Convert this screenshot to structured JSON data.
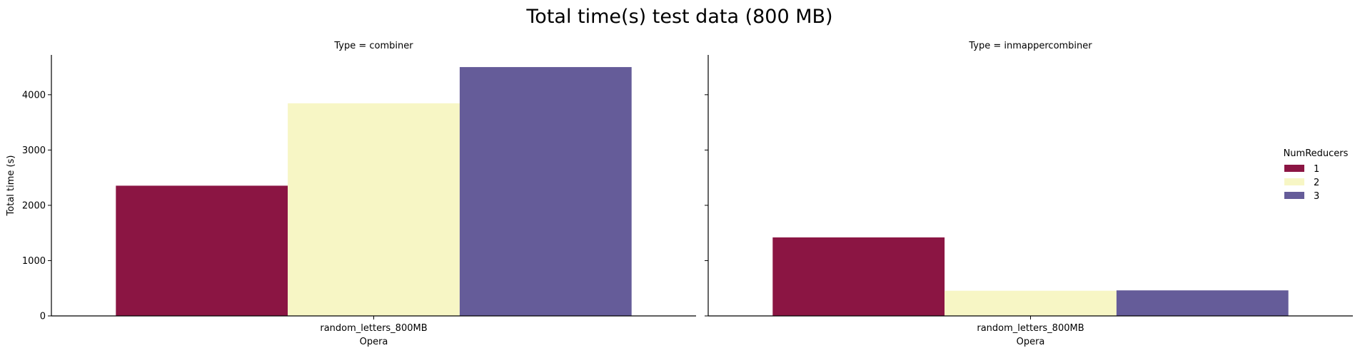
{
  "title": "Total time(s) test data (800 MB)",
  "legend": {
    "title": "NumReducers",
    "placement": "right",
    "entries": [
      {
        "label": "1",
        "color": "#8b1543"
      },
      {
        "label": "2",
        "color": "#f7f6c5"
      },
      {
        "label": "3",
        "color": "#655c99"
      }
    ]
  },
  "chart_data": [
    {
      "type": "bar",
      "title": "Type = combiner",
      "xlabel": "Opera",
      "ylabel": "Total time (s)",
      "categories": [
        "random_letters_800MB"
      ],
      "ylim": [
        0,
        4720
      ],
      "yticks": [
        0,
        1000,
        2000,
        3000,
        4000
      ],
      "grid": false,
      "series": [
        {
          "name": "1",
          "values": [
            2355
          ]
        },
        {
          "name": "2",
          "values": [
            3845
          ]
        },
        {
          "name": "3",
          "values": [
            4500
          ]
        }
      ]
    },
    {
      "type": "bar",
      "title": "Type = inmappercombiner",
      "xlabel": "Opera",
      "ylabel": "",
      "categories": [
        "random_letters_800MB"
      ],
      "ylim": [
        0,
        4720
      ],
      "yticks": [
        0,
        1000,
        2000,
        3000,
        4000
      ],
      "grid": false,
      "series": [
        {
          "name": "1",
          "values": [
            1420
          ]
        },
        {
          "name": "2",
          "values": [
            455
          ]
        },
        {
          "name": "3",
          "values": [
            462
          ]
        }
      ]
    }
  ]
}
